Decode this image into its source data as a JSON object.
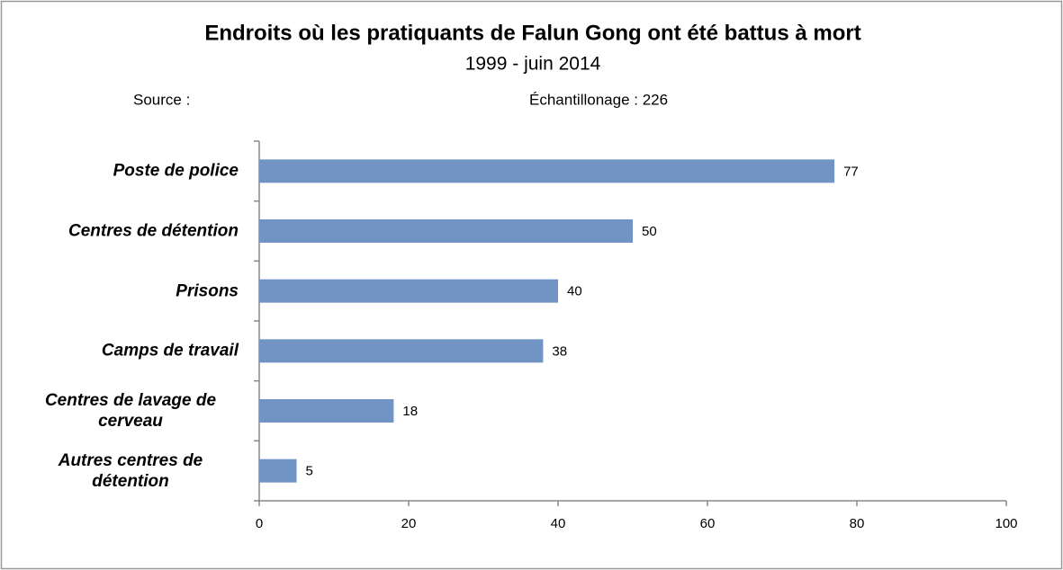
{
  "chart_data": {
    "type": "bar",
    "orientation": "horizontal",
    "title": "Endroits où les pratiquants de Falun Gong ont été battus à mort",
    "subtitle": "1999 - juin 2014",
    "source": "Source :",
    "sample": "Échantillonage : 226",
    "categories": [
      "Poste de police",
      "Centres de détention",
      "Prisons",
      "Camps de travail",
      "Centres de lavage de cerveau",
      "Autres centres de détention"
    ],
    "values": [
      77,
      50,
      40,
      38,
      18,
      5
    ],
    "color": "#7294c5",
    "xlim": [
      0,
      100
    ],
    "xticks": [
      0,
      20,
      40,
      60,
      80,
      100
    ],
    "grid": false
  }
}
